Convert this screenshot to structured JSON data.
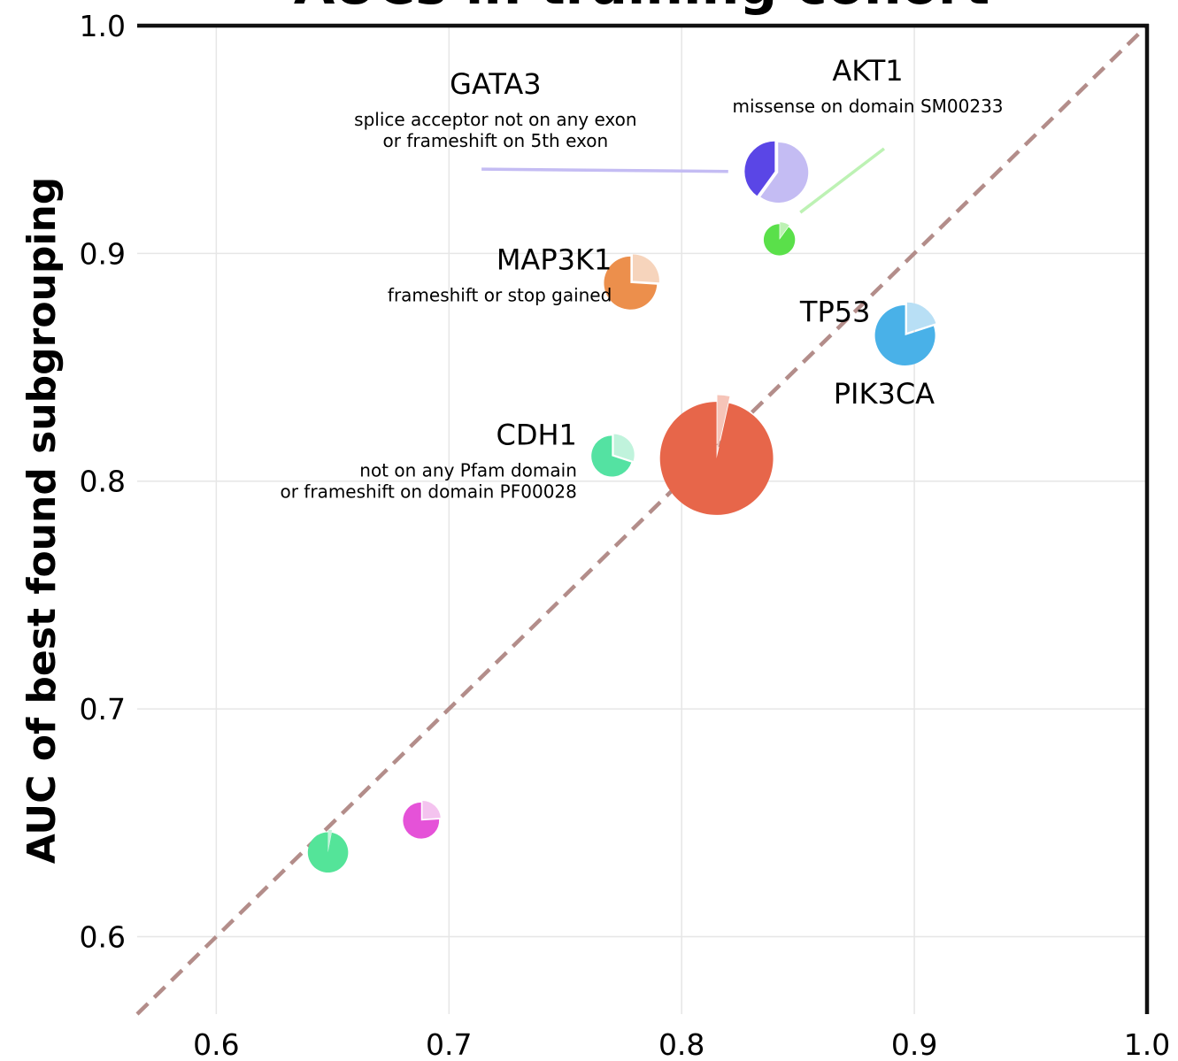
{
  "chart_data": {
    "type": "scatter",
    "title": "AUCs in training cohort",
    "xlabel": "",
    "ylabel": "AUC of best found subgrouping",
    "xlim": [
      0.566,
      1.0
    ],
    "ylim": [
      0.566,
      1.0
    ],
    "xticks": [
      "0.6",
      "0.7",
      "0.8",
      "0.9",
      "1.0"
    ],
    "yticks": [
      "0.6",
      "0.7",
      "0.8",
      "0.9",
      "1.0"
    ],
    "grid": true,
    "diagonal": true,
    "points": [
      {
        "gene": "GATA3",
        "desc": [
          "splice acceptor not on any exon",
          "or frameshift on 5th exon"
        ],
        "x": 0.84,
        "y": 0.936,
        "size": 1.0,
        "fraction": 0.6,
        "color": "#5a46e6",
        "light": "#c4bcf3",
        "label": {
          "x": 0.72,
          "y": 0.97,
          "align": "middle"
        },
        "leader": [
          0.714,
          0.937,
          0.82,
          0.936
        ]
      },
      {
        "gene": "AKT1",
        "desc": [
          "missense on domain SM00233"
        ],
        "x": 0.842,
        "y": 0.906,
        "size": 0.52,
        "fraction": 0.1,
        "color": "#5ae04a",
        "light": "#bdf2b4",
        "label": {
          "x": 0.88,
          "y": 0.976,
          "align": "middle"
        },
        "leader": [
          0.887,
          0.946,
          0.851,
          0.918
        ]
      },
      {
        "gene": "MAP3K1",
        "desc": [
          "frameshift or stop gained"
        ],
        "x": 0.778,
        "y": 0.887,
        "size": 0.88,
        "fraction": 0.26,
        "color": "#ec8f4c",
        "light": "#f6d4bc",
        "label": {
          "x": 0.77,
          "y": 0.893,
          "align": "end"
        },
        "leader": null
      },
      {
        "gene": "TP53",
        "desc": [],
        "x": 0.896,
        "y": 0.864,
        "size": 1.0,
        "fraction": 0.2,
        "color": "#49b1e8",
        "light": "#b8dff5",
        "label": {
          "x": 0.866,
          "y": 0.87,
          "align": "middle"
        },
        "leader": null
      },
      {
        "gene": "CDH1",
        "desc": [
          "not on any Pfam domain",
          "or frameshift on domain PF00028"
        ],
        "x": 0.77,
        "y": 0.811,
        "size": 0.68,
        "fraction": 0.3,
        "color": "#54e2a2",
        "light": "#c0f3dc",
        "label": {
          "x": 0.755,
          "y": 0.816,
          "align": "end"
        },
        "leader": null
      },
      {
        "gene": "PIK3CA",
        "desc": [],
        "x": 0.815,
        "y": 0.81,
        "size": 1.88,
        "fraction": 0.035,
        "color": "#e7664a",
        "light": "#f6c4b8",
        "label": {
          "x": 0.887,
          "y": 0.834,
          "align": "middle"
        },
        "leader": null
      },
      {
        "gene": "",
        "desc": [],
        "x": 0.688,
        "y": 0.651,
        "size": 0.6,
        "fraction": 0.24,
        "color": "#e552d8",
        "light": "#f4c3ef",
        "label": null,
        "leader": null
      },
      {
        "gene": "",
        "desc": [],
        "x": 0.648,
        "y": 0.637,
        "size": 0.67,
        "fraction": 0.03,
        "color": "#54e499",
        "light": "#c4f3da",
        "label": null,
        "leader": null
      }
    ]
  }
}
